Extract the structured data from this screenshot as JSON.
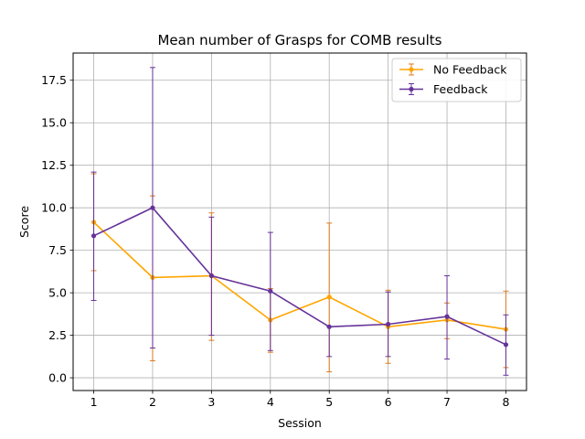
{
  "chart_data": {
    "type": "line",
    "title": "Mean number of Grasps for COMB results",
    "xlabel": "Session",
    "ylabel": "Score",
    "x": [
      1,
      2,
      3,
      4,
      5,
      6,
      7,
      8
    ],
    "xlim": [
      0.65,
      8.35
    ],
    "ylim": [
      -0.75,
      19.1
    ],
    "yticks": [
      0.0,
      2.5,
      5.0,
      7.5,
      10.0,
      12.5,
      15.0,
      17.5
    ],
    "ytick_labels": [
      "0.0",
      "2.5",
      "5.0",
      "7.5",
      "10.0",
      "12.5",
      "15.0",
      "17.5"
    ],
    "xtick_labels": [
      "1",
      "2",
      "3",
      "4",
      "5",
      "6",
      "7",
      "8"
    ],
    "grid": true,
    "legend_position": "top-right",
    "series": [
      {
        "name": "No Feedback",
        "color": "#ffa500",
        "errcolor": "#e07b20",
        "values": [
          9.15,
          5.9,
          6.0,
          3.4,
          4.75,
          3.0,
          3.4,
          2.85
        ],
        "err_low": [
          6.3,
          1.0,
          2.2,
          1.5,
          0.35,
          0.85,
          2.3,
          0.6
        ],
        "err_high": [
          12.0,
          10.7,
          9.7,
          5.25,
          9.1,
          5.15,
          4.4,
          5.1
        ]
      },
      {
        "name": "Feedback",
        "color": "#663399",
        "errcolor": "#663399",
        "values": [
          8.35,
          10.0,
          6.0,
          5.1,
          3.0,
          3.15,
          3.6,
          1.95
        ],
        "err_low": [
          4.55,
          1.75,
          2.5,
          1.6,
          1.25,
          1.25,
          1.1,
          0.15
        ],
        "err_high": [
          12.1,
          18.25,
          9.45,
          8.55,
          3.0,
          5.05,
          6.0,
          3.7
        ]
      }
    ]
  }
}
